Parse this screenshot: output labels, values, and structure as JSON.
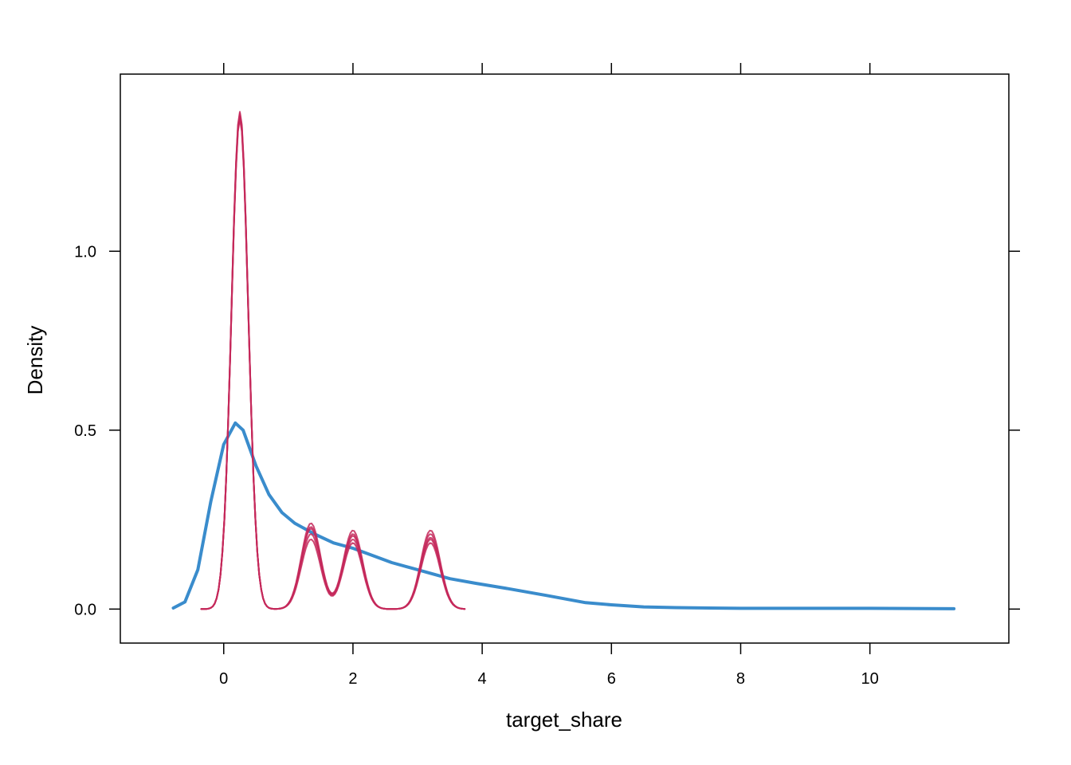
{
  "chart_data": {
    "type": "line",
    "xlabel": "target_share",
    "ylabel": "Density",
    "xlim": [
      -1.6,
      12.15
    ],
    "ylim": [
      -0.095,
      1.495
    ],
    "x_ticks": [
      0,
      2,
      4,
      6,
      8,
      10
    ],
    "x_tick_labels": [
      "0",
      "2",
      "4",
      "6",
      "8",
      "10"
    ],
    "y_ticks": [
      0.0,
      0.5,
      1.0
    ],
    "y_tick_labels": [
      "0.0",
      "0.5",
      "1.0"
    ],
    "grid": false,
    "series": [
      {
        "color": "#3a8ccc",
        "points": [
          [
            -0.78,
            0.003
          ],
          [
            -0.6,
            0.02
          ],
          [
            -0.4,
            0.11
          ],
          [
            -0.2,
            0.3
          ],
          [
            0.0,
            0.46
          ],
          [
            0.18,
            0.52
          ],
          [
            0.3,
            0.5
          ],
          [
            0.5,
            0.4
          ],
          [
            0.7,
            0.32
          ],
          [
            0.9,
            0.27
          ],
          [
            1.1,
            0.24
          ],
          [
            1.4,
            0.21
          ],
          [
            1.7,
            0.185
          ],
          [
            2.0,
            0.17
          ],
          [
            2.3,
            0.15
          ],
          [
            2.6,
            0.13
          ],
          [
            2.9,
            0.115
          ],
          [
            3.2,
            0.1
          ],
          [
            3.5,
            0.085
          ],
          [
            3.9,
            0.072
          ],
          [
            4.4,
            0.057
          ],
          [
            5.0,
            0.038
          ],
          [
            5.6,
            0.018
          ],
          [
            6.0,
            0.012
          ],
          [
            6.5,
            0.006
          ],
          [
            7.0,
            0.004
          ],
          [
            8.0,
            0.002
          ],
          [
            9.0,
            0.002
          ],
          [
            10.0,
            0.002
          ],
          [
            11.3,
            0.001
          ]
        ]
      },
      {
        "color": "#c4285a",
        "points": []
      },
      {
        "color": "#c4285a",
        "points": []
      },
      {
        "color": "#c4285a",
        "points": []
      },
      {
        "color": "#c4285a",
        "points": []
      },
      {
        "color": "#c4285a",
        "points": []
      }
    ]
  }
}
